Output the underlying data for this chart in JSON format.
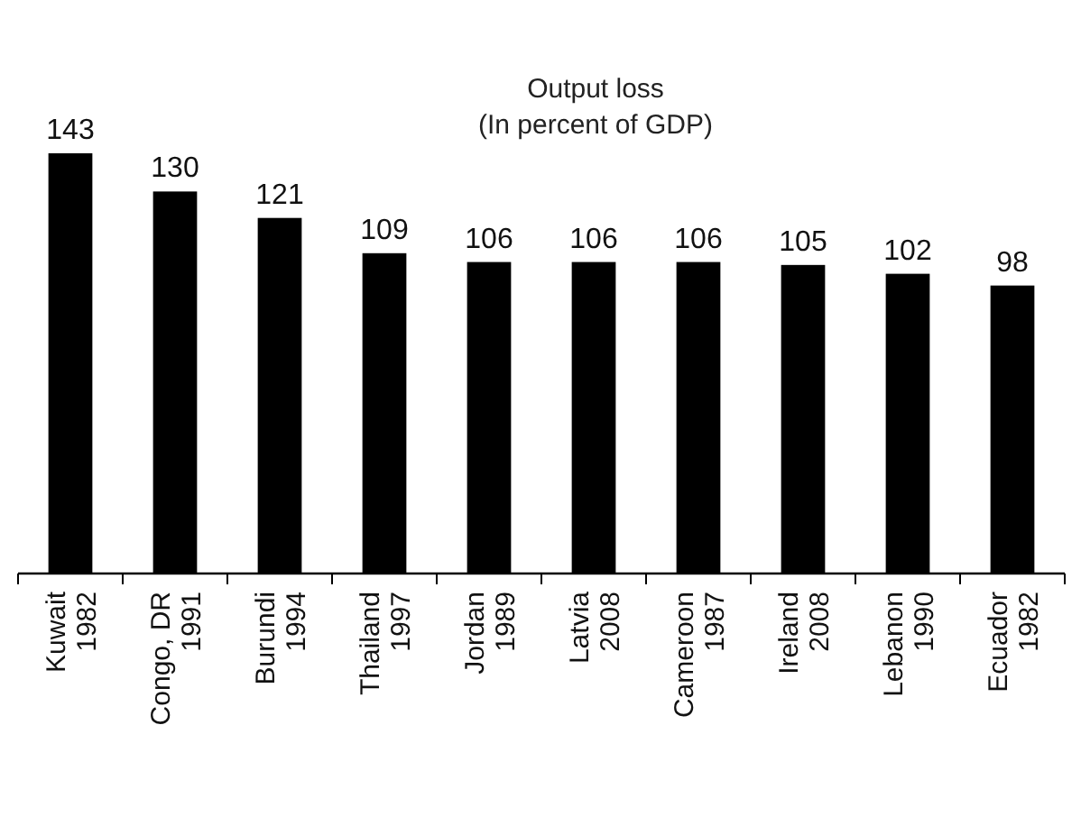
{
  "chart_data": {
    "type": "bar",
    "title": "Output loss",
    "subtitle": "(In percent of GDP)",
    "categories": [
      "Kuwait 1982",
      "Congo, DR 1991",
      "Burundi 1994",
      "Thailand 1997",
      "Jordan 1989",
      "Latvia 2008",
      "Cameroon 1987",
      "Ireland 2008",
      "Lebanon 1990",
      "Ecuador 1982"
    ],
    "values": [
      143,
      130,
      121,
      109,
      106,
      106,
      106,
      105,
      102,
      98
    ],
    "color": "#000000",
    "data_labels": true
  }
}
